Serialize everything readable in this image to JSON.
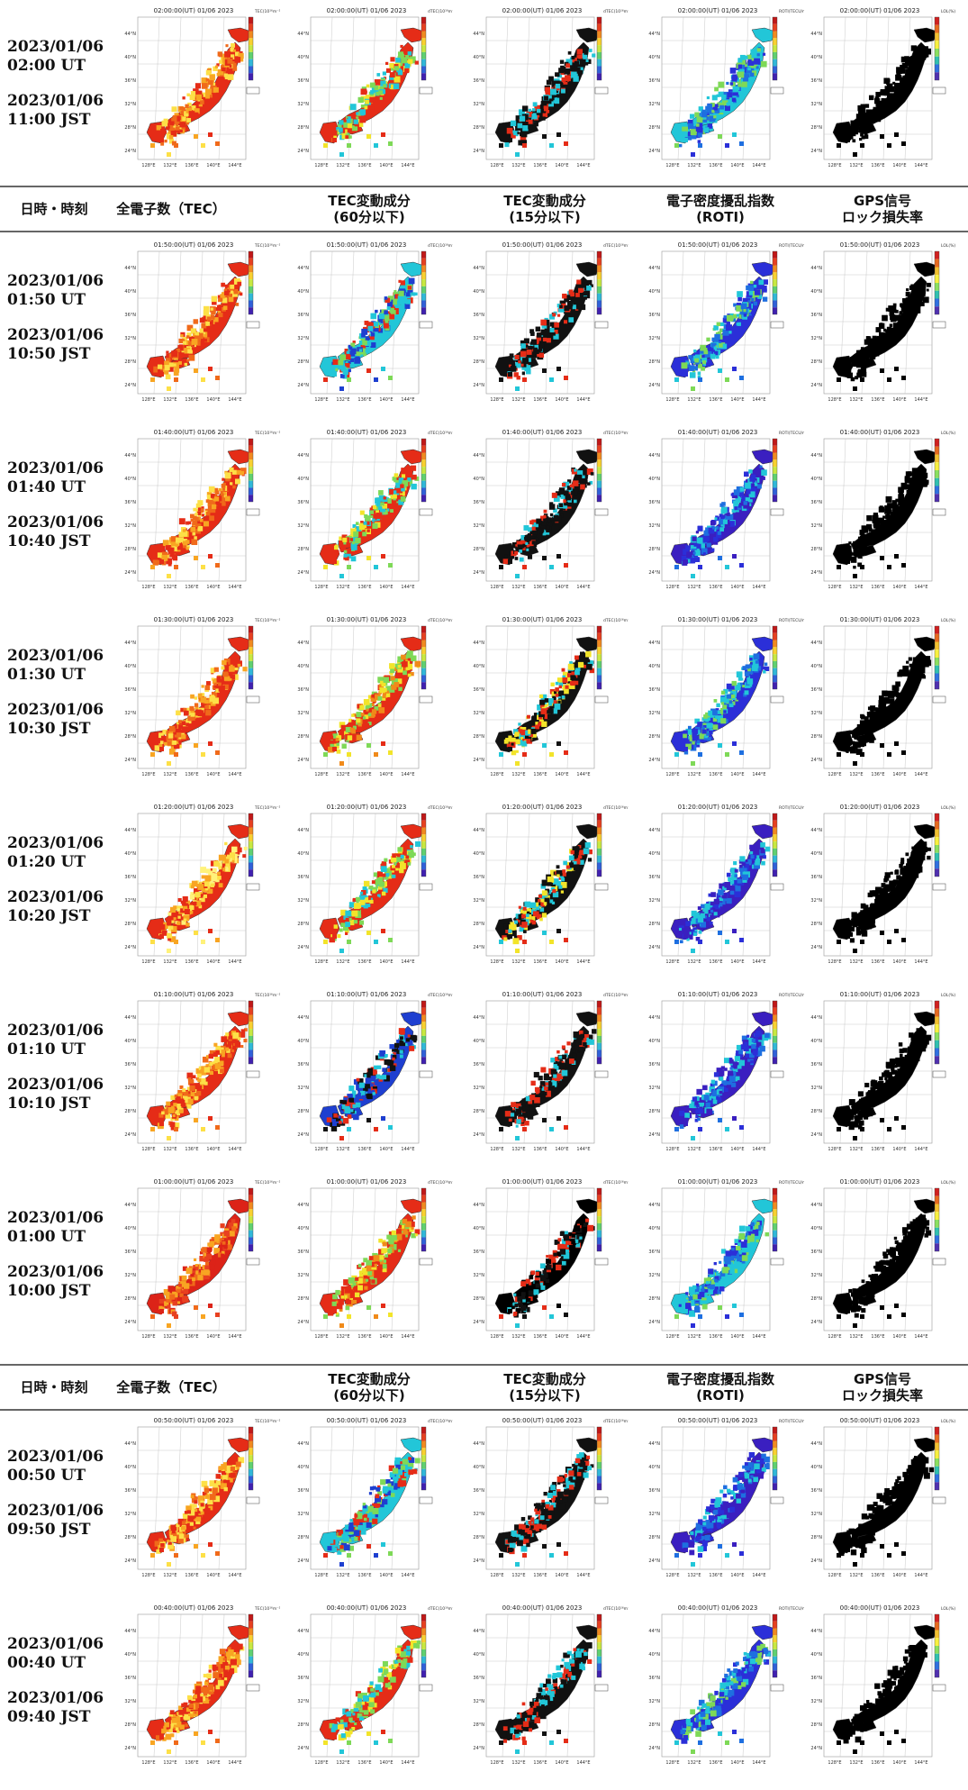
{
  "headers": {
    "datetime": "日時・時刻",
    "tec": "全電子数（TEC）",
    "tec60": [
      "TEC変動成分",
      "(60分以下)"
    ],
    "tec15": [
      "TEC変動成分",
      "(15分以下)"
    ],
    "roti": [
      "電子密度擾乱指数",
      "(ROTI)"
    ],
    "gps": [
      "GPS信号",
      "ロック損失率"
    ]
  },
  "map_labels": {
    "lat": [
      "44°N",
      "40°N",
      "36°N",
      "32°N",
      "28°N",
      "24°N"
    ],
    "lon": [
      "128°E",
      "132°E",
      "136°E",
      "140°E",
      "144°E"
    ]
  },
  "colorbar_units": [
    "TEC(10¹⁶m⁻²)",
    "dTEC(10¹⁶m⁻²)",
    "dTEC(10¹⁶m⁻²)",
    "ROTI(TECU/min)",
    "LOL(%)"
  ],
  "rows": [
    {
      "ut": "2023/01/06\n02:00 UT",
      "jst": "2023/01/06\n11:00 JST",
      "stamp": "02:00:00(UT) 01/06 2023",
      "palettes": [
        "tec_hi",
        "mix_green",
        "dark_red",
        "cyan_blue",
        "black"
      ]
    },
    {
      "ut": "2023/01/06\n01:50 UT",
      "jst": "2023/01/06\n10:50 JST",
      "stamp": "01:50:00(UT) 01/06 2023",
      "palettes": [
        "tec_hi",
        "mix_cyan",
        "dark_red",
        "blue",
        "black"
      ]
    },
    {
      "ut": "2023/01/06\n01:40 UT",
      "jst": "2023/01/06\n10:40 JST",
      "stamp": "01:40:00(UT) 01/06 2023",
      "palettes": [
        "tec_hi",
        "mix_green",
        "dark_red",
        "purple",
        "black"
      ]
    },
    {
      "ut": "2023/01/06\n01:30 UT",
      "jst": "2023/01/06\n10:30 JST",
      "stamp": "01:30:00(UT) 01/06 2023",
      "palettes": [
        "tec_hi",
        "mix_red",
        "dark_mix",
        "blue",
        "black"
      ]
    },
    {
      "ut": "2023/01/06\n01:20 UT",
      "jst": "2023/01/06\n10:20 JST",
      "stamp": "01:20:00(UT) 01/06 2023",
      "palettes": [
        "tec_yellow",
        "mix_green",
        "dark_mix",
        "purple",
        "black"
      ]
    },
    {
      "ut": "2023/01/06\n01:10 UT",
      "jst": "2023/01/06\n10:10 JST",
      "stamp": "01:10:00(UT) 01/06 2023",
      "palettes": [
        "tec_hi",
        "blue_mix",
        "dark_red",
        "purple",
        "black"
      ]
    },
    {
      "ut": "2023/01/06\n01:00 UT",
      "jst": "2023/01/06\n10:00 JST",
      "stamp": "01:00:00(UT) 01/06 2023",
      "palettes": [
        "tec_red",
        "mix_red",
        "black_only",
        "cyan_blue",
        "black"
      ]
    },
    {
      "ut": "2023/01/06\n00:50 UT",
      "jst": "2023/01/06\n09:50 JST",
      "stamp": "00:50:00(UT) 01/06 2023",
      "palettes": [
        "tec_hi",
        "mix_cyan",
        "dark_red",
        "purple",
        "black"
      ]
    },
    {
      "ut": "2023/01/06\n00:40 UT",
      "jst": "2023/01/06\n09:40 JST",
      "stamp": "00:40:00(UT) 01/06 2023",
      "palettes": [
        "tec_hi",
        "mix_green",
        "dark_red",
        "blue",
        "black"
      ]
    }
  ],
  "palettes": {
    "tec_hi": [
      "#e52c17",
      "#f06a1a",
      "#f8a522",
      "#fde047"
    ],
    "tec_yellow": [
      "#e52c17",
      "#f8a522",
      "#fde047",
      "#fff27a"
    ],
    "tec_red": [
      "#dc2318",
      "#e84020",
      "#f06a1a",
      "#f8a522"
    ],
    "mix_green": [
      "#e52c17",
      "#7ed957",
      "#f2e42a",
      "#22c6d8"
    ],
    "mix_cyan": [
      "#22c6d8",
      "#7ed957",
      "#e52c17",
      "#1e3fd0"
    ],
    "mix_red": [
      "#e52c17",
      "#f2e42a",
      "#7ed957",
      "#f08a1a"
    ],
    "blue_mix": [
      "#1e3fd0",
      "#22c6d8",
      "#111111",
      "#e52c17"
    ],
    "dark_red": [
      "#111111",
      "#e52c17",
      "#111111",
      "#22c6d8"
    ],
    "dark_mix": [
      "#111111",
      "#e52c17",
      "#22c6d8",
      "#f2e42a"
    ],
    "black_only": [
      "#000000",
      "#111111",
      "#e52c17",
      "#22c6d8"
    ],
    "blue": [
      "#2b2fd8",
      "#1e6fe0",
      "#22c6d8",
      "#7ed957"
    ],
    "purple": [
      "#3a1fc0",
      "#2b2fd8",
      "#1e6fe0",
      "#22c6d8"
    ],
    "cyan_blue": [
      "#22c6d8",
      "#1e6fe0",
      "#7ed957",
      "#2b2fd8"
    ],
    "black": [
      "#000000",
      "#000000",
      "#000000",
      "#000000"
    ]
  }
}
